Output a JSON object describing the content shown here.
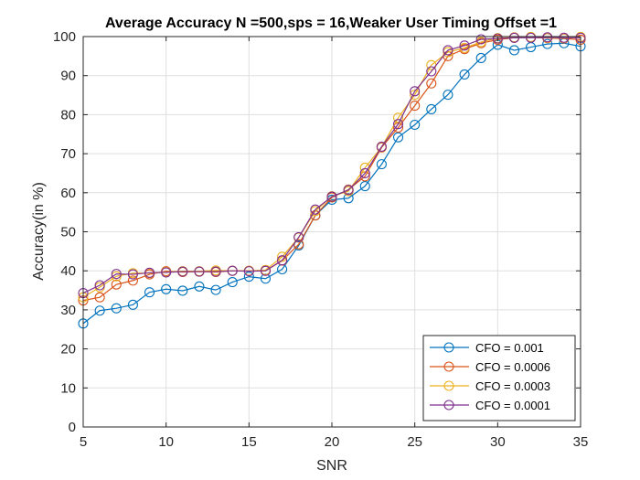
{
  "chart_data": {
    "type": "line",
    "title": "Average Accuracy N =500,sps = 16,Weaker User Timing Offset =1",
    "xlabel": "SNR",
    "ylabel": "Accuracy(in %)",
    "xlim": [
      5,
      35
    ],
    "ylim": [
      0,
      100
    ],
    "xticks": [
      5,
      10,
      15,
      20,
      25,
      30,
      35
    ],
    "yticks": [
      0,
      10,
      20,
      30,
      40,
      50,
      60,
      70,
      80,
      90,
      100
    ],
    "grid": true,
    "legend_position": "bottom-right",
    "x": [
      5,
      6,
      7,
      8,
      9,
      10,
      11,
      12,
      13,
      14,
      15,
      16,
      17,
      18,
      19,
      20,
      21,
      22,
      23,
      24,
      25,
      26,
      27,
      28,
      29,
      30,
      31,
      32,
      33,
      34,
      35
    ],
    "series": [
      {
        "name": "CFO = 0.001",
        "color": "#0072BD",
        "values": [
          26.5,
          29.8,
          30.4,
          31.3,
          34.5,
          35.3,
          34.9,
          36.0,
          35.1,
          37.1,
          38.5,
          38.0,
          40.4,
          46.5,
          54.2,
          58.2,
          58.6,
          61.7,
          67.3,
          74.2,
          77.4,
          81.4,
          85.1,
          90.3,
          94.5,
          97.9,
          96.5,
          97.3,
          98.1,
          98.3,
          97.5
        ]
      },
      {
        "name": "CFO = 0.0006",
        "color": "#D95319",
        "values": [
          32.4,
          33.2,
          36.5,
          37.5,
          39.1,
          39.9,
          39.7,
          39.8,
          39.7,
          40.0,
          40.0,
          40.0,
          42.6,
          46.8,
          54.2,
          58.8,
          60.8,
          64.2,
          71.6,
          76.7,
          82.3,
          88.0,
          95.0,
          96.8,
          98.3,
          99.2,
          99.7,
          99.8,
          99.6,
          99.5,
          99.2
        ]
      },
      {
        "name": "CFO = 0.0003",
        "color": "#EDB120",
        "values": [
          33.2,
          35.8,
          38.6,
          39.4,
          39.4,
          39.7,
          39.9,
          39.9,
          40.1,
          40.0,
          40.0,
          40.2,
          43.6,
          48.5,
          55.3,
          59.1,
          60.4,
          66.4,
          71.7,
          79.2,
          85.1,
          92.7,
          96.0,
          97.1,
          98.6,
          99.6,
          99.8,
          99.9,
          99.7,
          99.6,
          99.9
        ]
      },
      {
        "name": "CFO = 0.0001",
        "color": "#7E2F8E",
        "values": [
          34.3,
          36.3,
          39.2,
          39.1,
          39.5,
          39.6,
          39.8,
          39.8,
          39.8,
          40.0,
          39.9,
          40.0,
          42.7,
          48.6,
          55.7,
          59.0,
          60.7,
          65.0,
          71.8,
          77.6,
          86.0,
          91.1,
          96.5,
          97.7,
          99.3,
          99.5,
          99.7,
          99.7,
          99.8,
          99.7,
          99.7
        ]
      }
    ]
  }
}
